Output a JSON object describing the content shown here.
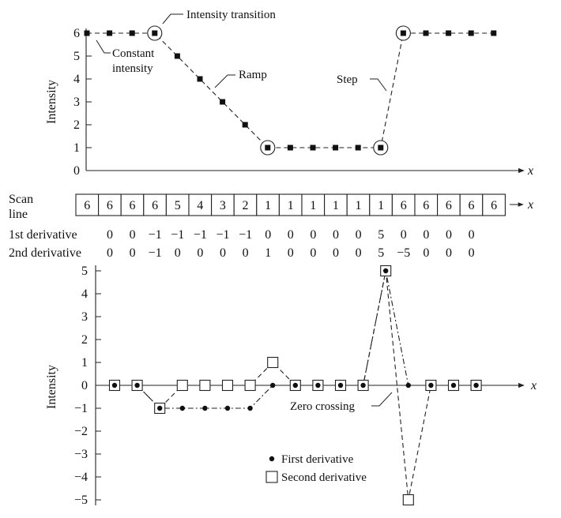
{
  "top_plot": {
    "y_label": "Intensity",
    "x_label": "x",
    "y_ticks": [
      "0",
      "1",
      "2",
      "3",
      "4",
      "5",
      "6"
    ],
    "profile": [
      6,
      6,
      6,
      6,
      5,
      4,
      3,
      2,
      1,
      1,
      1,
      1,
      1,
      1,
      6,
      6,
      6,
      6,
      6
    ],
    "circled_indices": [
      3,
      8,
      13,
      14
    ],
    "annotations": {
      "transition": "Intensity transition",
      "constant_line1": "Constant",
      "constant_line2": "intensity",
      "ramp": "Ramp",
      "step": "Step"
    }
  },
  "scan_table": {
    "label_line1": "Scan",
    "label_line2": "line",
    "x_label": "x",
    "values": [
      "6",
      "6",
      "6",
      "6",
      "5",
      "4",
      "3",
      "2",
      "1",
      "1",
      "1",
      "1",
      "1",
      "1",
      "6",
      "6",
      "6",
      "6",
      "6"
    ]
  },
  "derivatives": {
    "first_label": "1st derivative",
    "second_label": "2nd derivative",
    "first_values": [
      "0",
      "0",
      "−1",
      "−1",
      "−1",
      "−1",
      "−1",
      "0",
      "0",
      "0",
      "0",
      "0",
      "5",
      "0",
      "0",
      "0",
      "0"
    ],
    "second_values": [
      "0",
      "0",
      "−1",
      "0",
      "0",
      "0",
      "0",
      "1",
      "0",
      "0",
      "0",
      "0",
      "5",
      "−5",
      "0",
      "0",
      "0"
    ]
  },
  "bottom_plot": {
    "y_label": "Intensity",
    "x_label": "x",
    "y_ticks": [
      "−5",
      "−4",
      "−3",
      "−2",
      "−1",
      "0",
      "1",
      "2",
      "3",
      "4",
      "5"
    ],
    "first_derivative": [
      0,
      0,
      -1,
      -1,
      -1,
      -1,
      -1,
      0,
      0,
      0,
      0,
      0,
      5,
      0,
      0,
      0,
      0
    ],
    "second_derivative": [
      0,
      0,
      -1,
      0,
      0,
      0,
      0,
      1,
      0,
      0,
      0,
      0,
      5,
      -5,
      0,
      0,
      0
    ],
    "zero_crossing_label": "Zero crossing",
    "legend": {
      "first": "First derivative",
      "second": "Second derivative"
    }
  }
}
